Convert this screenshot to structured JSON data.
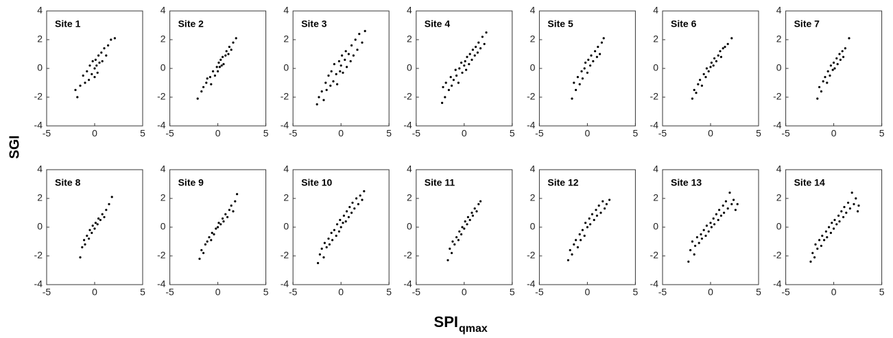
{
  "figure": {
    "y_label": "SGI",
    "x_label": "SPI",
    "x_label_subscript": "qmax"
  },
  "chart_data": [
    {
      "type": "scatter",
      "title": "Site 1",
      "color": "#000000",
      "xlim": [
        -5,
        5
      ],
      "ylim": [
        -4,
        4
      ],
      "xticks": [
        -5,
        0,
        5
      ],
      "yticks": [
        -4,
        -2,
        0,
        2,
        4
      ],
      "x": [
        -2,
        -1.8,
        -1.5,
        -1.2,
        -1,
        -0.8,
        -0.6,
        -0.5,
        -0.3,
        -0.2,
        0,
        0,
        0.1,
        0.2,
        0.3,
        0.4,
        0.5,
        0.7,
        0.8,
        1,
        1.2,
        1.4,
        1.7,
        2.1
      ],
      "y": [
        -1.5,
        -2,
        -1.2,
        -0.5,
        -1,
        -0.2,
        -0.8,
        0.2,
        -0.4,
        0.5,
        0,
        -0.6,
        0.6,
        0.2,
        -0.3,
        0.9,
        0.4,
        1.1,
        0.5,
        1.4,
        0.9,
        1.6,
        2,
        2.1
      ]
    },
    {
      "type": "scatter",
      "title": "Site 2",
      "color": "#000000",
      "xlim": [
        -5,
        5
      ],
      "ylim": [
        -4,
        4
      ],
      "xticks": [
        -5,
        0,
        5
      ],
      "yticks": [
        -4,
        -2,
        0,
        2,
        4
      ],
      "x": [
        -2.1,
        -1.7,
        -1.5,
        -1.2,
        -1.1,
        -0.8,
        -0.7,
        -0.5,
        -0.3,
        -0.1,
        0,
        0.1,
        0.2,
        0.3,
        0.4,
        0.5,
        0.6,
        0.8,
        0.9,
        1.1,
        1.2,
        1.4,
        1.6,
        1.9
      ],
      "y": [
        -2.1,
        -1.6,
        -1.3,
        -1,
        -0.7,
        -0.6,
        -1.1,
        -0.2,
        -0.5,
        0.1,
        -0.2,
        0.4,
        0.1,
        0.6,
        0.2,
        0.8,
        0.3,
        0.9,
        1.2,
        1,
        1.5,
        1.3,
        1.8,
        2.1
      ]
    },
    {
      "type": "scatter",
      "title": "Site 3",
      "color": "#000000",
      "xlim": [
        -5,
        5
      ],
      "ylim": [
        -4,
        4
      ],
      "xticks": [
        -5,
        0,
        5
      ],
      "yticks": [
        -4,
        -2,
        0,
        2,
        4
      ],
      "x": [
        -2.5,
        -2.3,
        -2,
        -1.8,
        -1.6,
        -1.5,
        -1.3,
        -1.1,
        -1,
        -0.8,
        -0.7,
        -0.5,
        -0.4,
        -0.2,
        -0.1,
        0,
        0.1,
        0.2,
        0.4,
        0.5,
        0.6,
        0.8,
        1,
        1.1,
        1.3,
        1.5,
        1.7,
        1.9,
        2.2,
        2.5
      ],
      "y": [
        -2.5,
        -2,
        -1.6,
        -2.2,
        -1,
        -1.5,
        -0.5,
        -1.2,
        -0.2,
        -0.9,
        0.3,
        -0.4,
        -1.1,
        0.5,
        -0.2,
        0.2,
        0.9,
        -0.3,
        0.6,
        1.2,
        0.1,
        1,
        0.5,
        1.6,
        0.9,
        2,
        1.3,
        2.4,
        1.8,
        2.6
      ]
    },
    {
      "type": "scatter",
      "title": "Site 4",
      "color": "#000000",
      "xlim": [
        -5,
        5
      ],
      "ylim": [
        -4,
        4
      ],
      "xticks": [
        -5,
        0,
        5
      ],
      "yticks": [
        -4,
        -2,
        0,
        2,
        4
      ],
      "x": [
        -2.3,
        -2.2,
        -2,
        -1.9,
        -1.6,
        -1.4,
        -1.3,
        -1.1,
        -0.9,
        -0.8,
        -0.6,
        -0.5,
        -0.3,
        -0.2,
        0,
        0.1,
        0.2,
        0.3,
        0.5,
        0.6,
        0.8,
        0.9,
        1.1,
        1.2,
        1.4,
        1.5,
        1.7,
        1.9,
        2.1,
        2.3
      ],
      "y": [
        -2.4,
        -1.3,
        -2,
        -1,
        -1.5,
        -0.6,
        -1.2,
        -0.8,
        -0.1,
        -0.5,
        -1,
        0,
        0.4,
        -0.3,
        0.2,
        0.5,
        -0.1,
        0.8,
        0.3,
        1,
        0.6,
        1.3,
        0.9,
        1.5,
        1.1,
        1.8,
        1.4,
        2.2,
        1.7,
        2.5
      ]
    },
    {
      "type": "scatter",
      "title": "Site 5",
      "color": "#000000",
      "xlim": [
        -5,
        5
      ],
      "ylim": [
        -4,
        4
      ],
      "xticks": [
        -5,
        0,
        5
      ],
      "yticks": [
        -4,
        -2,
        0,
        2,
        4
      ],
      "x": [
        -1.6,
        -1.4,
        -1.2,
        -1,
        -0.8,
        -0.6,
        -0.5,
        -0.3,
        -0.2,
        0,
        0.1,
        0.3,
        0.4,
        0.6,
        0.8,
        1,
        1.1,
        1.3,
        1.5,
        1.7
      ],
      "y": [
        -2.1,
        -1,
        -1.5,
        -0.6,
        -1.1,
        -0.2,
        -0.7,
        0,
        0.4,
        -0.3,
        0.6,
        0.2,
        0.9,
        0.5,
        1.2,
        0.8,
        1.5,
        1,
        1.8,
        2.1
      ]
    },
    {
      "type": "scatter",
      "title": "Site 6",
      "color": "#000000",
      "xlim": [
        -5,
        5
      ],
      "ylim": [
        -4,
        4
      ],
      "xticks": [
        -5,
        0,
        5
      ],
      "yticks": [
        -4,
        -2,
        0,
        2,
        4
      ],
      "x": [
        -1.9,
        -1.7,
        -1.5,
        -1.3,
        -1.1,
        -0.9,
        -0.7,
        -0.5,
        -0.4,
        -0.2,
        0,
        0.1,
        0.3,
        0.4,
        0.6,
        0.8,
        1,
        1.1,
        1.3,
        1.5,
        1.8,
        2.2
      ],
      "y": [
        -2.1,
        -1.5,
        -1.7,
        -1.1,
        -0.8,
        -1.2,
        -0.4,
        -0.6,
        0,
        -0.2,
        0.1,
        0.4,
        0.2,
        0.7,
        0.5,
        0.9,
        1.2,
        0.8,
        1.4,
        1.5,
        1.7,
        2.1
      ]
    },
    {
      "type": "scatter",
      "title": "Site 7",
      "color": "#000000",
      "xlim": [
        -5,
        5
      ],
      "ylim": [
        -4,
        4
      ],
      "xticks": [
        -5,
        0,
        5
      ],
      "yticks": [
        -4,
        -2,
        0,
        2,
        4
      ],
      "x": [
        -1.7,
        -1.5,
        -1.3,
        -1.1,
        -0.9,
        -0.7,
        -0.6,
        -0.4,
        -0.3,
        -0.1,
        0,
        0.1,
        0.3,
        0.4,
        0.6,
        0.7,
        0.9,
        1,
        1.2,
        1.6
      ],
      "y": [
        -2.1,
        -1.3,
        -1.6,
        -0.9,
        -0.6,
        -1,
        -0.2,
        -0.5,
        0.2,
        -0.1,
        0.4,
        0,
        0.7,
        0.3,
        1,
        0.6,
        1.2,
        0.8,
        1.4,
        2.1
      ]
    },
    {
      "type": "scatter",
      "title": "Site 8",
      "color": "#000000",
      "xlim": [
        -5,
        5
      ],
      "ylim": [
        -4,
        4
      ],
      "xticks": [
        -5,
        0,
        5
      ],
      "yticks": [
        -4,
        -2,
        0,
        2,
        4
      ],
      "x": [
        -1.5,
        -1.3,
        -1.1,
        -1,
        -0.8,
        -0.6,
        -0.5,
        -0.3,
        -0.2,
        0,
        0.1,
        0.3,
        0.4,
        0.6,
        0.8,
        1,
        1.2,
        1.5,
        1.8
      ],
      "y": [
        -2.1,
        -1.4,
        -0.9,
        -1.2,
        -0.6,
        -0.8,
        -0.2,
        -0.4,
        0.1,
        -0.1,
        0.3,
        0.2,
        0.6,
        0.5,
        0.9,
        0.7,
        1.2,
        1.6,
        2.1
      ]
    },
    {
      "type": "scatter",
      "title": "Site 9",
      "color": "#000000",
      "xlim": [
        -5,
        5
      ],
      "ylim": [
        -4,
        4
      ],
      "xticks": [
        -5,
        0,
        5
      ],
      "yticks": [
        -4,
        -2,
        0,
        2,
        4
      ],
      "x": [
        -1.9,
        -1.7,
        -1.5,
        -1.3,
        -1.1,
        -0.9,
        -0.7,
        -0.6,
        -0.4,
        -0.2,
        0,
        0.1,
        0.3,
        0.5,
        0.6,
        0.8,
        1,
        1.2,
        1.4,
        1.6,
        1.8,
        2
      ],
      "y": [
        -2.2,
        -1.6,
        -1.8,
        -1.2,
        -1,
        -0.7,
        -0.9,
        -0.4,
        -0.5,
        -0.1,
        0,
        0.3,
        0.2,
        0.6,
        0.4,
        0.9,
        0.7,
        1.2,
        1.5,
        1.1,
        1.8,
        2.3
      ]
    },
    {
      "type": "scatter",
      "title": "Site 10",
      "color": "#000000",
      "xlim": [
        -5,
        5
      ],
      "ylim": [
        -4,
        4
      ],
      "xticks": [
        -5,
        0,
        5
      ],
      "yticks": [
        -4,
        -2,
        0,
        2,
        4
      ],
      "x": [
        -2.4,
        -2.2,
        -2,
        -1.8,
        -1.7,
        -1.5,
        -1.3,
        -1.2,
        -1,
        -0.9,
        -0.7,
        -0.5,
        -0.4,
        -0.2,
        -0.1,
        0,
        0.2,
        0.3,
        0.5,
        0.6,
        0.8,
        0.9,
        1.1,
        1.2,
        1.4,
        1.6,
        1.8,
        2,
        2.2,
        2.4
      ],
      "y": [
        -2.5,
        -1.9,
        -1.5,
        -2.1,
        -1.1,
        -1.4,
        -0.8,
        -1.2,
        -0.4,
        -0.9,
        -0.2,
        -0.6,
        0.2,
        -0.3,
        0.5,
        0,
        0.3,
        0.8,
        0.4,
        1.1,
        0.7,
        1.4,
        1,
        1.7,
        1.3,
        2,
        1.6,
        2.2,
        1.9,
        2.5
      ]
    },
    {
      "type": "scatter",
      "title": "Site 11",
      "color": "#000000",
      "xlim": [
        -5,
        5
      ],
      "ylim": [
        -4,
        4
      ],
      "xticks": [
        -5,
        0,
        5
      ],
      "yticks": [
        -4,
        -2,
        0,
        2,
        4
      ],
      "x": [
        -1.7,
        -1.5,
        -1.3,
        -1.2,
        -1,
        -0.8,
        -0.6,
        -0.5,
        -0.3,
        -0.2,
        0,
        0.1,
        0.3,
        0.4,
        0.6,
        0.8,
        0.9,
        1.1,
        1.3,
        1.5,
        1.7
      ],
      "y": [
        -2.3,
        -1.5,
        -1.8,
        -1,
        -1.2,
        -0.7,
        -0.9,
        -0.3,
        -0.5,
        0,
        -0.1,
        0.4,
        0.2,
        0.7,
        0.5,
        1,
        0.8,
        1.3,
        1.1,
        1.6,
        1.8
      ]
    },
    {
      "type": "scatter",
      "title": "Site 12",
      "color": "#000000",
      "xlim": [
        -5,
        5
      ],
      "ylim": [
        -4,
        4
      ],
      "xticks": [
        -5,
        0,
        5
      ],
      "yticks": [
        -4,
        -2,
        0,
        2,
        4
      ],
      "x": [
        -2,
        -1.8,
        -1.6,
        -1.4,
        -1.2,
        -1,
        -0.8,
        -0.7,
        -0.5,
        -0.3,
        -0.2,
        0,
        0.2,
        0.3,
        0.5,
        0.7,
        0.9,
        1,
        1.2,
        1.4,
        1.6,
        1.8,
        2,
        2.3
      ],
      "y": [
        -2.3,
        -1.6,
        -1.9,
        -1.2,
        -0.9,
        -1.4,
        -0.5,
        -0.9,
        -0.2,
        -0.6,
        0.3,
        0,
        0.6,
        0.2,
        0.9,
        0.5,
        1.2,
        0.8,
        1.5,
        1,
        1.8,
        1.3,
        1.6,
        1.9
      ]
    },
    {
      "type": "scatter",
      "title": "Site 13",
      "color": "#000000",
      "xlim": [
        -5,
        5
      ],
      "ylim": [
        -4,
        4
      ],
      "xticks": [
        -5,
        0,
        5
      ],
      "yticks": [
        -4,
        -2,
        0,
        2,
        4
      ],
      "x": [
        -2.3,
        -2.1,
        -1.9,
        -1.7,
        -1.6,
        -1.4,
        -1.2,
        -1,
        -0.9,
        -0.7,
        -0.5,
        -0.4,
        -0.2,
        0,
        0.1,
        0.3,
        0.4,
        0.6,
        0.8,
        0.9,
        1.1,
        1.3,
        1.4,
        1.6,
        1.8,
        2,
        2.2,
        2.4,
        2.6,
        2.8
      ],
      "y": [
        -2.4,
        -1.6,
        -1,
        -1.9,
        -1.3,
        -0.7,
        -1.1,
        -0.5,
        -0.8,
        -0.2,
        -0.6,
        0.1,
        -0.3,
        0.3,
        0,
        0.6,
        0.2,
        0.9,
        0.5,
        1.2,
        0.8,
        1.5,
        1,
        1.8,
        1.3,
        2.4,
        1.6,
        1.9,
        1.2,
        1.6
      ]
    },
    {
      "type": "scatter",
      "title": "Site 14",
      "color": "#000000",
      "xlim": [
        -5,
        5
      ],
      "ylim": [
        -4,
        4
      ],
      "xticks": [
        -5,
        0,
        5
      ],
      "yticks": [
        -4,
        -2,
        0,
        2,
        4
      ],
      "x": [
        -2.4,
        -2.2,
        -2,
        -1.9,
        -1.7,
        -1.5,
        -1.3,
        -1.2,
        -1,
        -0.8,
        -0.7,
        -0.5,
        -0.3,
        -0.2,
        0,
        0.1,
        0.3,
        0.5,
        0.6,
        0.8,
        1,
        1.1,
        1.3,
        1.5,
        1.7,
        1.9,
        2.1,
        2.3,
        2.5,
        2.6
      ],
      "y": [
        -2.4,
        -1.8,
        -2.1,
        -1.2,
        -1.5,
        -0.9,
        -1.3,
        -0.6,
        -0.9,
        -0.3,
        -0.7,
        0,
        -0.4,
        0.3,
        -0.1,
        0.5,
        0.2,
        0.8,
        0.4,
        1.1,
        0.7,
        1.4,
        1,
        1.7,
        1.3,
        2.4,
        1.6,
        2,
        1.1,
        1.5
      ]
    }
  ]
}
